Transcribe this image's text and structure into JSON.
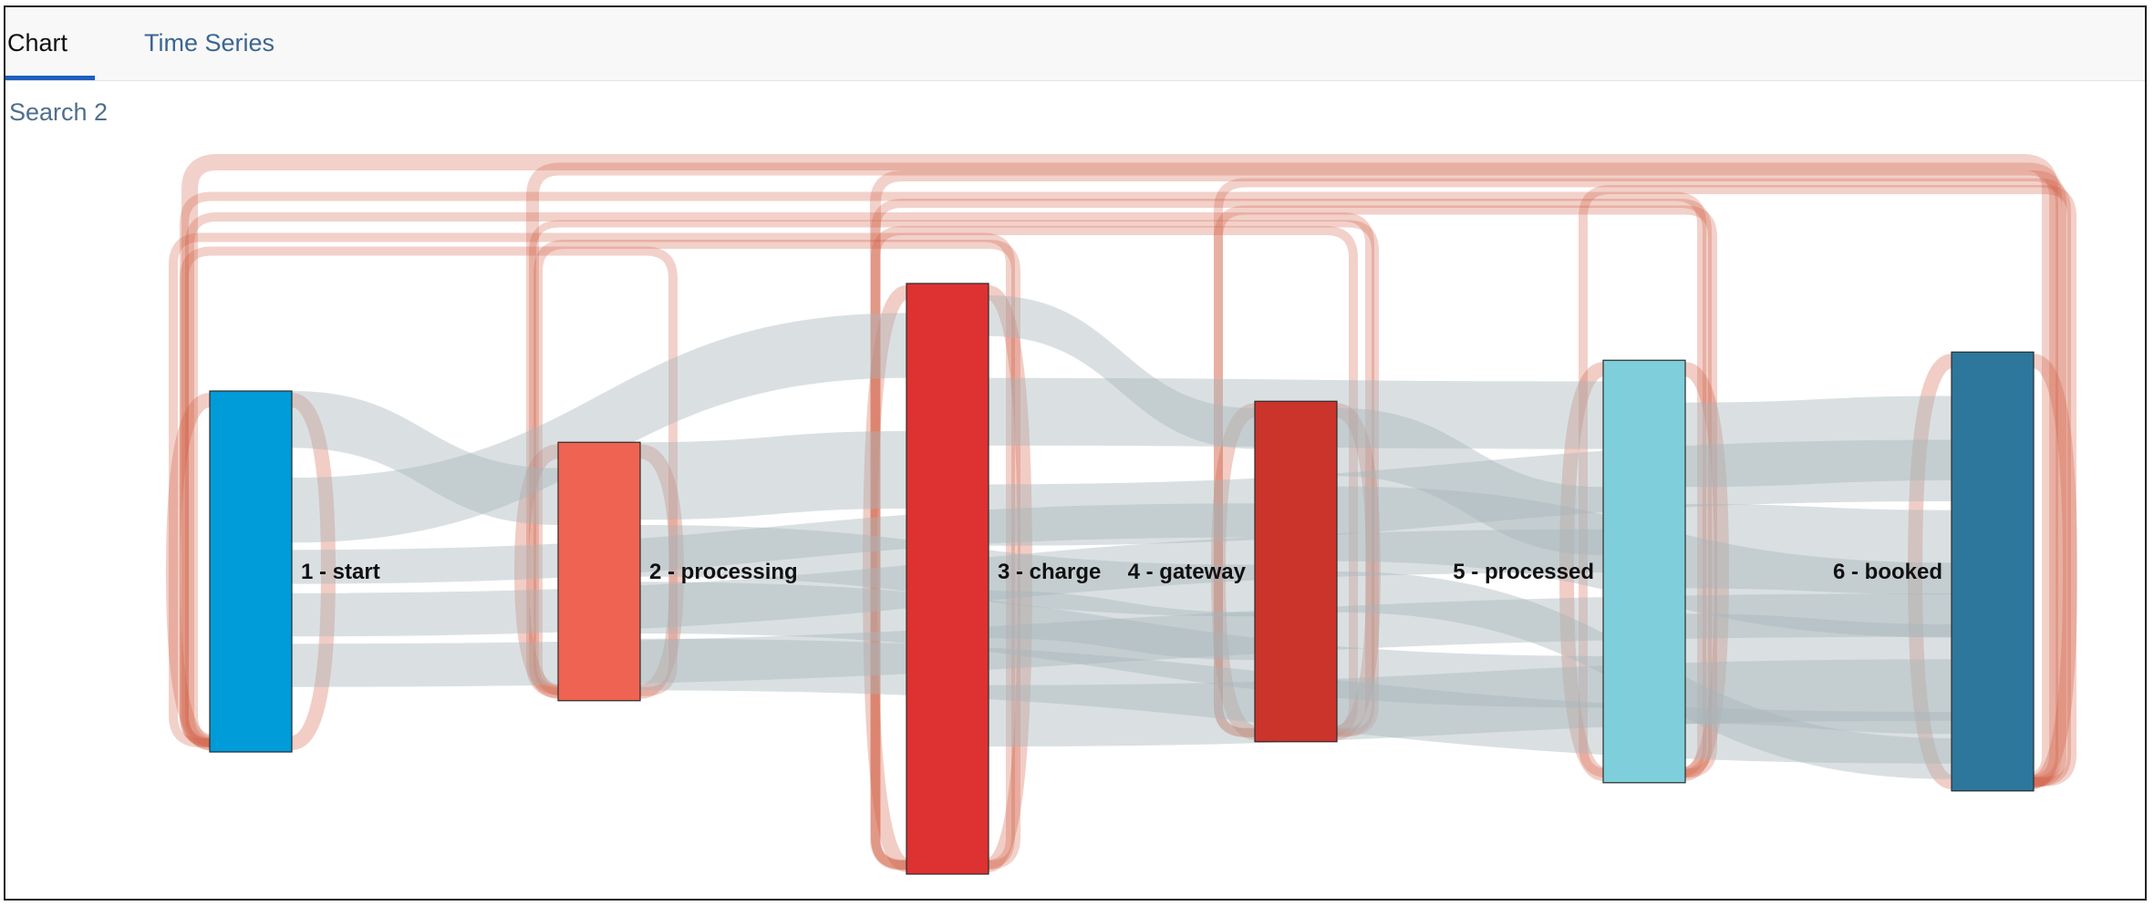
{
  "tabs": [
    {
      "label": "Chart",
      "active": true
    },
    {
      "label": "Time Series",
      "active": false
    }
  ],
  "search_title": "Search 2",
  "chart_data": {
    "type": "sankey",
    "title": "",
    "nodes": [
      {
        "name": "1 - start",
        "color": "#009bd9",
        "value": 88
      },
      {
        "name": "2 - processing",
        "color": "#ef6353",
        "value": 63
      },
      {
        "name": "3 - charge",
        "color": "#de3131",
        "value": 144
      },
      {
        "name": "4 - gateway",
        "color": "#cb342b",
        "value": 83
      },
      {
        "name": "5 - processed",
        "color": "#7ecfdb",
        "value": 103
      },
      {
        "name": "6 - booked",
        "color": "#2d779c",
        "value": 107
      }
    ],
    "link_colors": {
      "forward": "#a7b6ba",
      "backward": "#d25a40"
    }
  }
}
